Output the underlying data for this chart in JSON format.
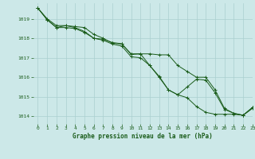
{
  "xlabel": "Graphe pression niveau de la mer (hPa)",
  "bg_color": "#cce8e8",
  "grid_color": "#aacfcf",
  "line_color": "#1a5c1a",
  "xlim": [
    -0.5,
    23
  ],
  "ylim": [
    1013.6,
    1019.8
  ],
  "yticks": [
    1014,
    1015,
    1016,
    1017,
    1018,
    1019
  ],
  "xticks": [
    0,
    1,
    2,
    3,
    4,
    5,
    6,
    7,
    8,
    9,
    10,
    11,
    12,
    13,
    14,
    15,
    16,
    17,
    18,
    19,
    20,
    21,
    22,
    23
  ],
  "series1": [
    1019.55,
    1019.0,
    1018.65,
    1018.65,
    1018.6,
    1018.55,
    1018.2,
    1018.0,
    1017.75,
    1017.7,
    1017.2,
    1017.2,
    1016.6,
    1016.0,
    1015.35,
    1015.1,
    1014.95,
    1014.5,
    1014.2,
    1014.1,
    1014.1,
    1014.1,
    1014.05,
    1014.4
  ],
  "series2": [
    1019.55,
    1018.95,
    1018.55,
    1018.65,
    1018.55,
    1018.35,
    1018.0,
    1017.95,
    1017.78,
    1017.72,
    1017.17,
    1017.2,
    1017.2,
    1017.15,
    1017.15,
    1016.6,
    1016.3,
    1016.0,
    1016.0,
    1015.35,
    1014.4,
    1014.15,
    1014.05,
    1014.45
  ],
  "series3": [
    1019.55,
    1018.95,
    1018.55,
    1018.55,
    1018.5,
    1018.3,
    1018.0,
    1017.9,
    1017.7,
    1017.6,
    1017.05,
    1017.0,
    1016.6,
    1016.05,
    1015.35,
    1015.1,
    1015.5,
    1015.9,
    1015.85,
    1015.2,
    1014.35,
    1014.15,
    1014.05,
    1014.45
  ]
}
